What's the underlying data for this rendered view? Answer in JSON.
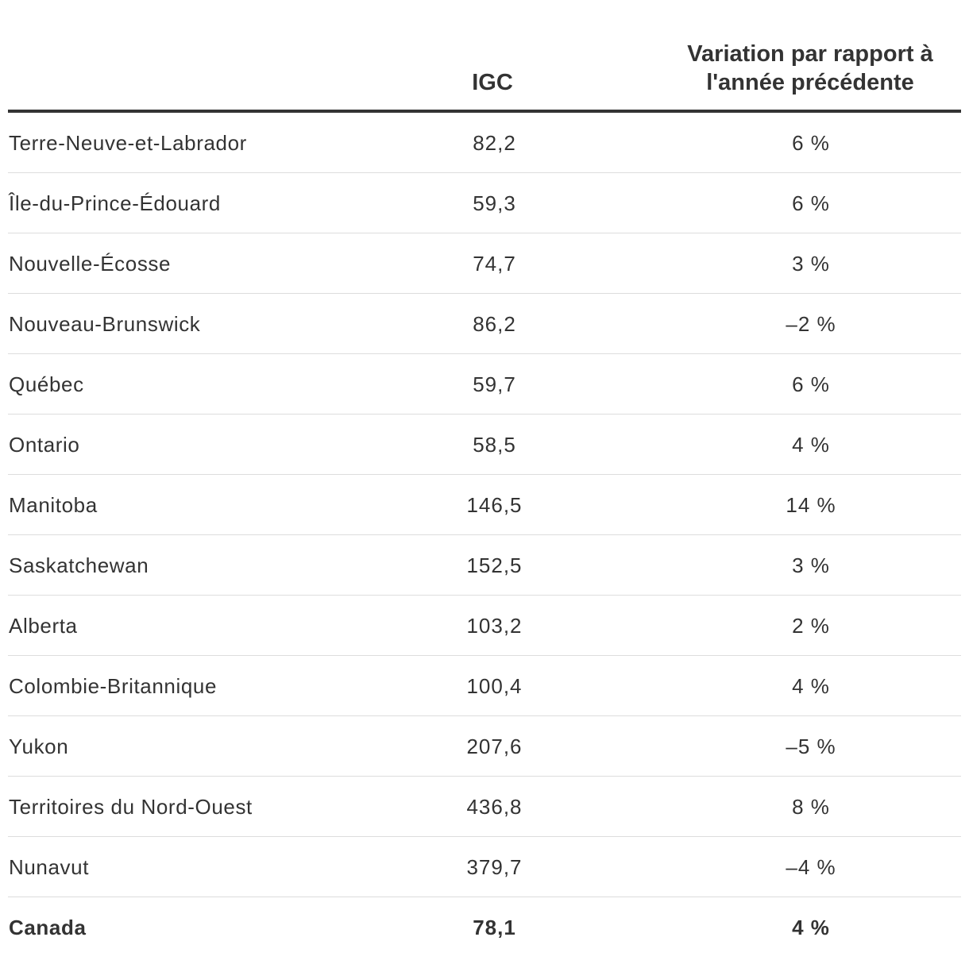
{
  "chart_data": {
    "type": "table",
    "columns": [
      "",
      "IGC",
      "Variation par rapport à l'année précédente"
    ],
    "rows": [
      {
        "name": "Terre-Neuve-et-Labrador",
        "igc": "82,2",
        "variation": "6 %"
      },
      {
        "name": "Île-du-Prince-Édouard",
        "igc": "59,3",
        "variation": "6 %"
      },
      {
        "name": "Nouvelle-Écosse",
        "igc": "74,7",
        "variation": "3 %"
      },
      {
        "name": "Nouveau-Brunswick",
        "igc": "86,2",
        "variation": "–2 %"
      },
      {
        "name": "Québec",
        "igc": "59,7",
        "variation": "6 %"
      },
      {
        "name": "Ontario",
        "igc": "58,5",
        "variation": "4 %"
      },
      {
        "name": "Manitoba",
        "igc": "146,5",
        "variation": "14 %"
      },
      {
        "name": "Saskatchewan",
        "igc": "152,5",
        "variation": "3 %"
      },
      {
        "name": "Alberta",
        "igc": "103,2",
        "variation": "2 %"
      },
      {
        "name": "Colombie-Britannique",
        "igc": "100,4",
        "variation": "4 %"
      },
      {
        "name": "Yukon",
        "igc": "207,6",
        "variation": "–5 %"
      },
      {
        "name": "Territoires du Nord-Ouest",
        "igc": "436,8",
        "variation": "8 %"
      },
      {
        "name": "Nunavut",
        "igc": "379,7",
        "variation": "–4 %"
      }
    ],
    "total": {
      "name": "Canada",
      "igc": "78,1",
      "variation": "4 %"
    }
  },
  "header": {
    "igc_label": "IGC",
    "variation_label": "Variation par rapport à l'année précédente"
  }
}
